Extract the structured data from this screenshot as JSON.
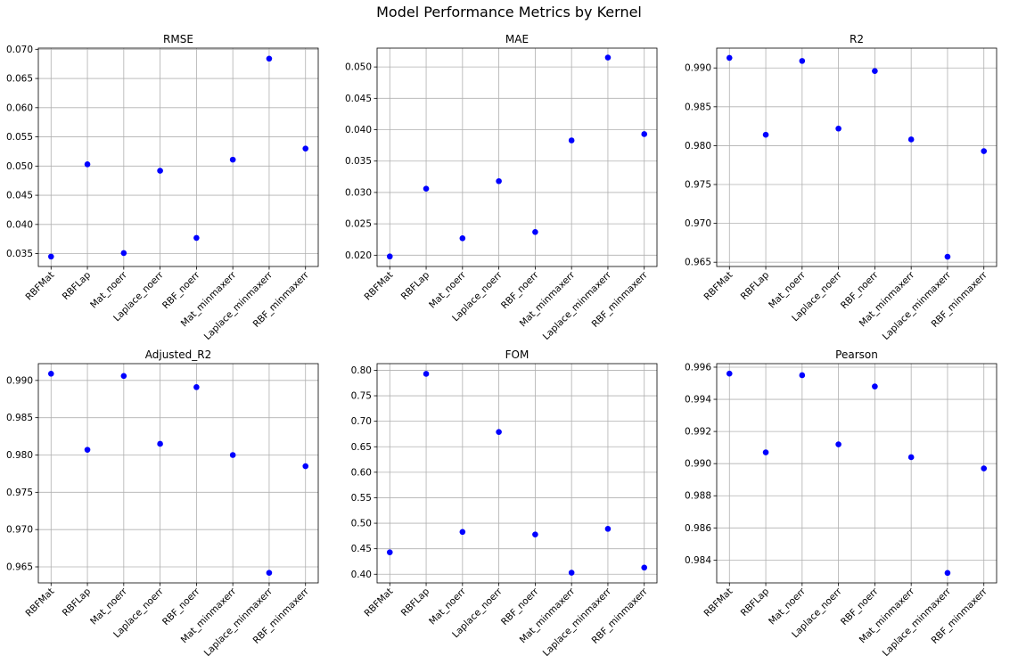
{
  "figure": {
    "title": "Model Performance Metrics by Kernel"
  },
  "marker_color": "#0000ff",
  "grid": true,
  "chart_data": [
    {
      "type": "scatter",
      "title": "RMSE",
      "categories": [
        "RBFMat",
        "RBFLap",
        "Mat_noerr",
        "Laplace_noerr",
        "RBF_noerr",
        "Mat_minmaxerr",
        "Laplace_minmaxerr",
        "RBF_minmaxerr"
      ],
      "values": [
        0.0345,
        0.0503,
        0.0351,
        0.0492,
        0.0377,
        0.0511,
        0.0684,
        0.053
      ],
      "ylim": [
        0.0328,
        0.0702
      ],
      "yticks": [
        0.035,
        0.04,
        0.045,
        0.05,
        0.055,
        0.06,
        0.065,
        0.07
      ],
      "ytick_labels": [
        "0.035",
        "0.040",
        "0.045",
        "0.050",
        "0.055",
        "0.060",
        "0.065",
        "0.070"
      ]
    },
    {
      "type": "scatter",
      "title": "MAE",
      "categories": [
        "RBFMat",
        "RBFLap",
        "Mat_noerr",
        "Laplace_noerr",
        "RBF_noerr",
        "Mat_minmaxerr",
        "Laplace_minmaxerr",
        "RBF_minmaxerr"
      ],
      "values": [
        0.0198,
        0.0306,
        0.0227,
        0.0318,
        0.0237,
        0.0383,
        0.0515,
        0.0393
      ],
      "ylim": [
        0.0182,
        0.053
      ],
      "yticks": [
        0.02,
        0.025,
        0.03,
        0.035,
        0.04,
        0.045,
        0.05
      ],
      "ytick_labels": [
        "0.020",
        "0.025",
        "0.030",
        "0.035",
        "0.040",
        "0.045",
        "0.050"
      ]
    },
    {
      "type": "scatter",
      "title": "R2",
      "categories": [
        "RBFMat",
        "RBFLap",
        "Mat_noerr",
        "Laplace_noerr",
        "RBF_noerr",
        "Mat_minmaxerr",
        "Laplace_minmaxerr",
        "RBF_minmaxerr"
      ],
      "values": [
        0.9913,
        0.9814,
        0.9909,
        0.9822,
        0.9896,
        0.9808,
        0.9657,
        0.9793
      ],
      "ylim": [
        0.96445,
        0.99255
      ],
      "yticks": [
        0.965,
        0.97,
        0.975,
        0.98,
        0.985,
        0.99
      ],
      "ytick_labels": [
        "0.965",
        "0.970",
        "0.975",
        "0.980",
        "0.985",
        "0.990"
      ]
    },
    {
      "type": "scatter",
      "title": "Adjusted_R2",
      "categories": [
        "RBFMat",
        "RBFLap",
        "Mat_noerr",
        "Laplace_noerr",
        "RBF_noerr",
        "Mat_minmaxerr",
        "Laplace_minmaxerr",
        "RBF_minmaxerr"
      ],
      "values": [
        0.9909,
        0.9807,
        0.9906,
        0.9815,
        0.9891,
        0.98,
        0.9642,
        0.9785
      ],
      "ylim": [
        0.96285,
        0.99225
      ],
      "yticks": [
        0.965,
        0.97,
        0.975,
        0.98,
        0.985,
        0.99
      ],
      "ytick_labels": [
        "0.965",
        "0.970",
        "0.975",
        "0.980",
        "0.985",
        "0.990"
      ]
    },
    {
      "type": "scatter",
      "title": "FOM",
      "categories": [
        "RBFMat",
        "RBFLap",
        "Mat_noerr",
        "Laplace_noerr",
        "RBF_noerr",
        "Mat_minmaxerr",
        "Laplace_minmaxerr",
        "RBF_minmaxerr"
      ],
      "values": [
        0.443,
        0.793,
        0.483,
        0.679,
        0.478,
        0.403,
        0.489,
        0.413
      ],
      "ylim": [
        0.383,
        0.813
      ],
      "yticks": [
        0.4,
        0.45,
        0.5,
        0.55,
        0.6,
        0.65,
        0.7,
        0.75,
        0.8
      ],
      "ytick_labels": [
        "0.40",
        "0.45",
        "0.50",
        "0.55",
        "0.60",
        "0.65",
        "0.70",
        "0.75",
        "0.80"
      ]
    },
    {
      "type": "scatter",
      "title": "Pearson",
      "categories": [
        "RBFMat",
        "RBFLap",
        "Mat_noerr",
        "Laplace_noerr",
        "RBF_noerr",
        "Mat_minmaxerr",
        "Laplace_minmaxerr",
        "RBF_minmaxerr"
      ],
      "values": [
        0.9956,
        0.9907,
        0.9955,
        0.9912,
        0.9948,
        0.9904,
        0.9832,
        0.9897
      ],
      "ylim": [
        0.98258,
        0.99622
      ],
      "yticks": [
        0.984,
        0.986,
        0.988,
        0.99,
        0.992,
        0.994,
        0.996
      ],
      "ytick_labels": [
        "0.984",
        "0.986",
        "0.988",
        "0.990",
        "0.992",
        "0.994",
        "0.996"
      ]
    }
  ]
}
